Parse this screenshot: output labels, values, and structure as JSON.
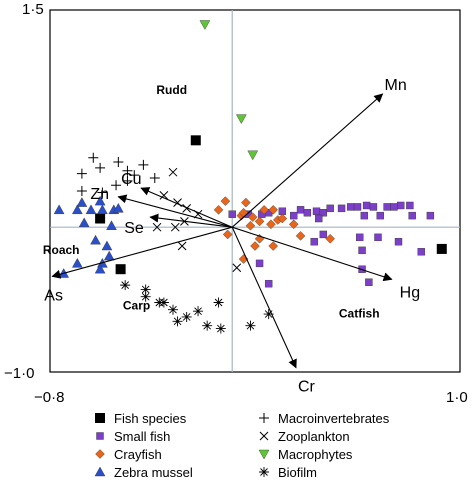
{
  "chart_data": {
    "type": "scatter",
    "title": "",
    "xlabel": "",
    "ylabel": "",
    "xlim": [
      -0.8,
      1.0
    ],
    "ylim": [
      -1.0,
      1.5
    ],
    "x_tick_labels": [
      "−0·8",
      "1·0"
    ],
    "y_tick_labels": [
      "1·5",
      "−1·0"
    ],
    "colors": {
      "fish_species": "#000000",
      "small_fish": "#7b3fc8",
      "crayfish": "#e8651c",
      "zebra_mussel": "#2a4fc9",
      "macrophytes": "#5ec634",
      "marker_edge": "#333333",
      "zero_line": "#a9b4c4"
    },
    "legend_position": "bottom",
    "legend": [
      {
        "key": "fish_species",
        "label": "Fish species",
        "marker": "square"
      },
      {
        "key": "macroinvertebrates",
        "label": "Macroinvertebrates",
        "marker": "plus"
      },
      {
        "key": "small_fish",
        "label": "Small fish",
        "marker": "square-small"
      },
      {
        "key": "zooplankton",
        "label": "Zooplankton",
        "marker": "cross"
      },
      {
        "key": "crayfish",
        "label": "Crayfish",
        "marker": "diamond"
      },
      {
        "key": "macrophytes",
        "label": "Macrophytes",
        "marker": "triangle-down"
      },
      {
        "key": "zebra_mussel",
        "label": "Zebra mussel",
        "marker": "triangle-up"
      },
      {
        "key": "biofilm",
        "label": "Biofilm",
        "marker": "asterisk"
      }
    ],
    "vectors": [
      {
        "label": "Mn",
        "x": 0.66,
        "y": 0.92
      },
      {
        "label": "Zn",
        "x": -0.5,
        "y": 0.21
      },
      {
        "label": "Cu",
        "x": -0.4,
        "y": 0.27
      },
      {
        "label": "Se",
        "x": -0.36,
        "y": 0.07
      },
      {
        "label": "As",
        "x": -0.79,
        "y": -0.34
      },
      {
        "label": "Hg",
        "x": 0.7,
        "y": -0.36
      },
      {
        "label": "Cr",
        "x": 0.28,
        "y": -0.97
      }
    ],
    "point_labels": [
      {
        "label": "Rudd",
        "x": -0.21,
        "y": 0.81
      },
      {
        "label": "Roach",
        "x": -0.77,
        "y": -0.09
      },
      {
        "label": "Carp",
        "x": -0.48,
        "y": -0.43
      },
      {
        "label": "Catfish",
        "x": 0.6,
        "y": -0.5
      }
    ],
    "series": [
      {
        "key": "fish_species",
        "name": "Fish species",
        "marker": "square",
        "points": [
          [
            -0.16,
            0.6
          ],
          [
            -0.58,
            0.06
          ],
          [
            -0.49,
            -0.29
          ],
          [
            0.92,
            -0.15
          ]
        ]
      },
      {
        "key": "small_fish",
        "name": "Small fish",
        "marker": "square-small",
        "points": [
          [
            0.0,
            0.09
          ],
          [
            0.07,
            0.09
          ],
          [
            0.13,
            0.09
          ],
          [
            0.22,
            0.11
          ],
          [
            0.3,
            0.12
          ],
          [
            0.33,
            0.1
          ],
          [
            0.37,
            0.11
          ],
          [
            0.4,
            0.1
          ],
          [
            0.43,
            0.13
          ],
          [
            0.48,
            0.13
          ],
          [
            0.52,
            0.14
          ],
          [
            0.55,
            0.14
          ],
          [
            0.59,
            0.15
          ],
          [
            0.62,
            0.14
          ],
          [
            0.68,
            0.14
          ],
          [
            0.71,
            0.14
          ],
          [
            0.74,
            0.15
          ],
          [
            0.78,
            0.15
          ],
          [
            0.58,
            0.08
          ],
          [
            0.65,
            0.08
          ],
          [
            0.79,
            0.08
          ],
          [
            0.87,
            0.08
          ],
          [
            0.38,
            0.06
          ],
          [
            0.27,
            0.08
          ],
          [
            0.16,
            0.1
          ],
          [
            0.56,
            -0.07
          ],
          [
            0.64,
            -0.07
          ],
          [
            0.73,
            -0.1
          ],
          [
            0.36,
            -0.1
          ],
          [
            0.4,
            -0.05
          ],
          [
            0.57,
            -0.16
          ],
          [
            0.57,
            -0.29
          ],
          [
            0.12,
            -0.25
          ],
          [
            0.16,
            -0.39
          ],
          [
            0.6,
            -0.38
          ],
          [
            0.83,
            -0.17
          ]
        ]
      },
      {
        "key": "crayfish",
        "name": "Crayfish",
        "marker": "diamond",
        "points": [
          [
            -0.06,
            0.12
          ],
          [
            -0.03,
            0.18
          ],
          [
            0.06,
            0.17
          ],
          [
            0.04,
            0.08
          ],
          [
            0.14,
            0.12
          ],
          [
            0.18,
            0.12
          ],
          [
            0.2,
            0.05
          ],
          [
            0.05,
            0.1
          ],
          [
            0.09,
            0.07
          ],
          [
            0.12,
            0.04
          ],
          [
            0.08,
            0.01
          ],
          [
            0.17,
            0.02
          ],
          [
            0.22,
            0.06
          ],
          [
            0.27,
            0.02
          ],
          [
            -0.02,
            -0.05
          ],
          [
            0.3,
            -0.06
          ],
          [
            0.1,
            -0.13
          ],
          [
            0.18,
            -0.13
          ],
          [
            0.43,
            -0.08
          ],
          [
            0.05,
            -0.22
          ],
          [
            0.12,
            -0.08
          ]
        ]
      },
      {
        "key": "zebra_mussel",
        "name": "Zebra mussel",
        "marker": "triangle-up",
        "points": [
          [
            -0.76,
            0.12
          ],
          [
            -0.68,
            0.12
          ],
          [
            -0.62,
            0.12
          ],
          [
            -0.57,
            0.12
          ],
          [
            -0.52,
            0.12
          ],
          [
            -0.66,
            0.17
          ],
          [
            -0.58,
            0.18
          ],
          [
            -0.5,
            0.13
          ],
          [
            -0.65,
            0.03
          ],
          [
            -0.53,
            0.01
          ],
          [
            -0.6,
            -0.09
          ],
          [
            -0.55,
            -0.13
          ],
          [
            -0.68,
            -0.25
          ],
          [
            -0.57,
            -0.25
          ],
          [
            -0.54,
            -0.2
          ],
          [
            -0.58,
            -0.29
          ],
          [
            -0.74,
            -0.32
          ]
        ]
      },
      {
        "key": "macrophytes",
        "name": "Macrophytes",
        "marker": "triangle-down",
        "points": [
          [
            -0.12,
            1.4
          ],
          [
            0.04,
            0.75
          ],
          [
            0.09,
            0.5
          ]
        ]
      },
      {
        "key": "macroinvertebrates",
        "name": "Macroinvertebrates",
        "marker": "plus",
        "points": [
          [
            -0.66,
            0.37
          ],
          [
            -0.58,
            0.41
          ],
          [
            -0.5,
            0.45
          ],
          [
            -0.61,
            0.48
          ],
          [
            -0.46,
            0.39
          ],
          [
            -0.43,
            0.36
          ],
          [
            -0.39,
            0.43
          ],
          [
            -0.46,
            0.32
          ],
          [
            -0.34,
            0.34
          ],
          [
            -0.66,
            0.25
          ],
          [
            -0.57,
            0.24
          ],
          [
            -0.51,
            0.29
          ]
        ]
      },
      {
        "key": "zooplankton",
        "name": "Zooplankton",
        "marker": "cross",
        "points": [
          [
            -0.26,
            0.38
          ],
          [
            -0.3,
            0.22
          ],
          [
            -0.24,
            0.17
          ],
          [
            -0.2,
            0.13
          ],
          [
            -0.15,
            0.09
          ],
          [
            -0.21,
            0.04
          ],
          [
            -0.25,
            0.0
          ],
          [
            -0.33,
            0.0
          ],
          [
            -0.22,
            -0.13
          ],
          [
            0.02,
            -0.28
          ]
        ]
      },
      {
        "key": "biofilm",
        "name": "Biofilm",
        "marker": "asterisk",
        "points": [
          [
            -0.47,
            -0.4
          ],
          [
            -0.38,
            -0.48
          ],
          [
            -0.32,
            -0.52
          ],
          [
            -0.38,
            -0.43
          ],
          [
            -0.26,
            -0.57
          ],
          [
            -0.24,
            -0.65
          ],
          [
            -0.3,
            -0.52
          ],
          [
            -0.15,
            -0.58
          ],
          [
            -0.06,
            -0.52
          ],
          [
            -0.05,
            -0.7
          ],
          [
            0.08,
            -0.68
          ],
          [
            0.16,
            -0.6
          ],
          [
            -0.11,
            -0.68
          ],
          [
            -0.2,
            -0.62
          ]
        ]
      }
    ]
  }
}
